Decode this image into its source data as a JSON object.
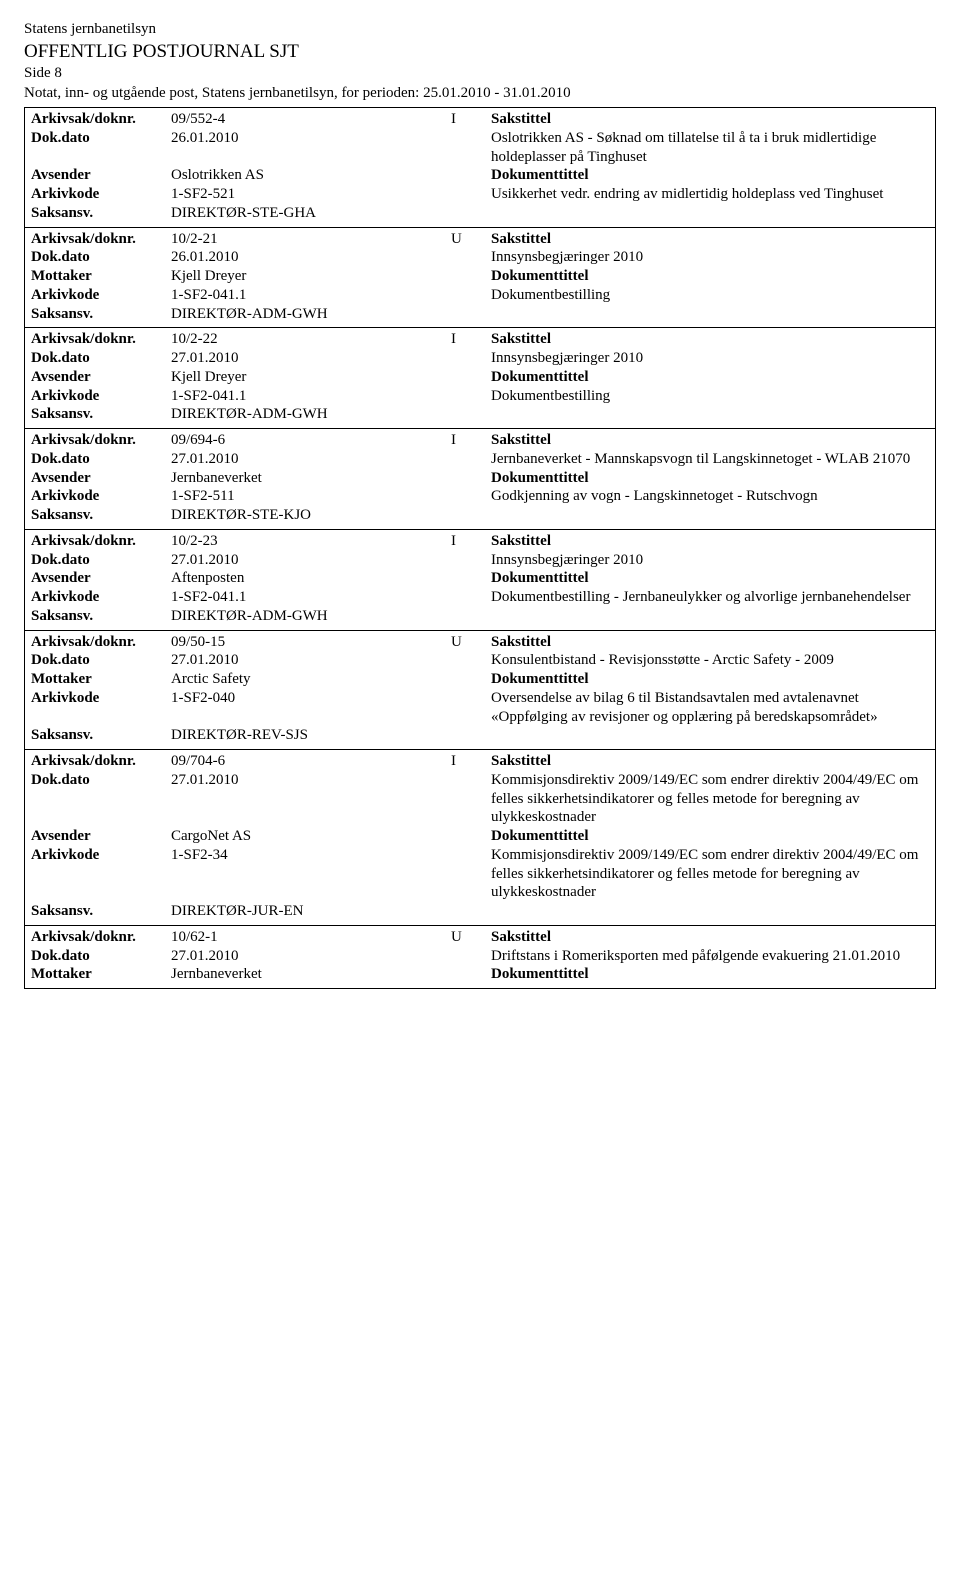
{
  "header": {
    "org": "Statens jernbanetilsyn",
    "title": "OFFENTLIG POSTJOURNAL SJT",
    "page": "Side 8",
    "period": "Notat, inn- og utgående post, Statens jernbanetilsyn, for perioden: 25.01.2010 - 31.01.2010"
  },
  "labels": {
    "arkivsak": "Arkivsak/doknr.",
    "dokdato": "Dok.dato",
    "avsender": "Avsender",
    "mottaker": "Mottaker",
    "arkivkode": "Arkivkode",
    "saksansv": "Saksansv.",
    "sakstittel": "Sakstittel",
    "dokumenttittel": "Dokumenttittel"
  },
  "records": [
    {
      "arkivsak": "09/552-4",
      "io": "I",
      "dokdato": "26.01.2010",
      "partyLabel": "Avsender",
      "party": "Oslotrikken AS",
      "sakstittel": "Oslotrikken AS - Søknad om tillatelse til å ta i bruk midlertidige holdeplasser på Tinghuset",
      "arkivkode": "1-SF2-521",
      "saksansv": "DIREKTØR-STE-GHA",
      "doktittel": "Usikkerhet vedr. endring av midlertidig holdeplass ved Tinghuset"
    },
    {
      "arkivsak": "10/2-21",
      "io": "U",
      "dokdato": "26.01.2010",
      "partyLabel": "Mottaker",
      "party": "Kjell Dreyer",
      "sakstittel": "Innsynsbegjæringer 2010",
      "arkivkode": "1-SF2-041.1",
      "saksansv": "DIREKTØR-ADM-GWH",
      "doktittel": "Dokumentbestilling"
    },
    {
      "arkivsak": "10/2-22",
      "io": "I",
      "dokdato": "27.01.2010",
      "partyLabel": "Avsender",
      "party": "Kjell Dreyer",
      "sakstittel": "Innsynsbegjæringer 2010",
      "arkivkode": "1-SF2-041.1",
      "saksansv": "DIREKTØR-ADM-GWH",
      "doktittel": "Dokumentbestilling"
    },
    {
      "arkivsak": "09/694-6",
      "io": "I",
      "dokdato": "27.01.2010",
      "partyLabel": "Avsender",
      "party": "Jernbaneverket",
      "sakstittel": "Jernbaneverket - Mannskapsvogn til Langskinnetoget - WLAB 21070",
      "arkivkode": "1-SF2-511",
      "saksansv": "DIREKTØR-STE-KJO",
      "doktittel": "Godkjenning av vogn - Langskinnetoget - Rutschvogn"
    },
    {
      "arkivsak": "10/2-23",
      "io": "I",
      "dokdato": "27.01.2010",
      "partyLabel": "Avsender",
      "party": "Aftenposten",
      "sakstittel": "Innsynsbegjæringer 2010",
      "arkivkode": "1-SF2-041.1",
      "saksansv": "DIREKTØR-ADM-GWH",
      "doktittel": "Dokumentbestilling - Jernbaneulykker og alvorlige jernbanehendelser"
    },
    {
      "arkivsak": "09/50-15",
      "io": "U",
      "dokdato": "27.01.2010",
      "partyLabel": "Mottaker",
      "party": "Arctic Safety",
      "sakstittel": "Konsulentbistand - Revisjonsstøtte - Arctic Safety - 2009",
      "arkivkode": "1-SF2-040",
      "saksansv": "DIREKTØR-REV-SJS",
      "doktittel": "Oversendelse av bilag 6 til Bistandsavtalen med avtalenavnet «Oppfølging av revisjoner og opplæring på beredskapsområdet»"
    },
    {
      "arkivsak": "09/704-6",
      "io": "I",
      "dokdato": "27.01.2010",
      "partyLabel": "Avsender",
      "party": "CargoNet AS",
      "sakstittel": "Kommisjonsdirektiv 2009/149/EC som endrer direktiv 2004/49/EC om felles sikkerhetsindikatorer og felles metode for beregning av ulykkeskostnader",
      "arkivkode": "1-SF2-34",
      "saksansv": "DIREKTØR-JUR-EN",
      "doktittel": "Kommisjonsdirektiv 2009/149/EC som endrer direktiv 2004/49/EC om felles sikkerhetsindikatorer og felles metode for beregning av ulykkeskostnader"
    },
    {
      "arkivsak": "10/62-1",
      "io": "U",
      "dokdato": "27.01.2010",
      "partyLabel": "Mottaker",
      "party": "Jernbaneverket",
      "sakstittel": "Driftstans i Romeriksporten med påfølgende evakuering 21.01.2010",
      "arkivkode": "",
      "saksansv": "",
      "doktittel": ""
    }
  ]
}
